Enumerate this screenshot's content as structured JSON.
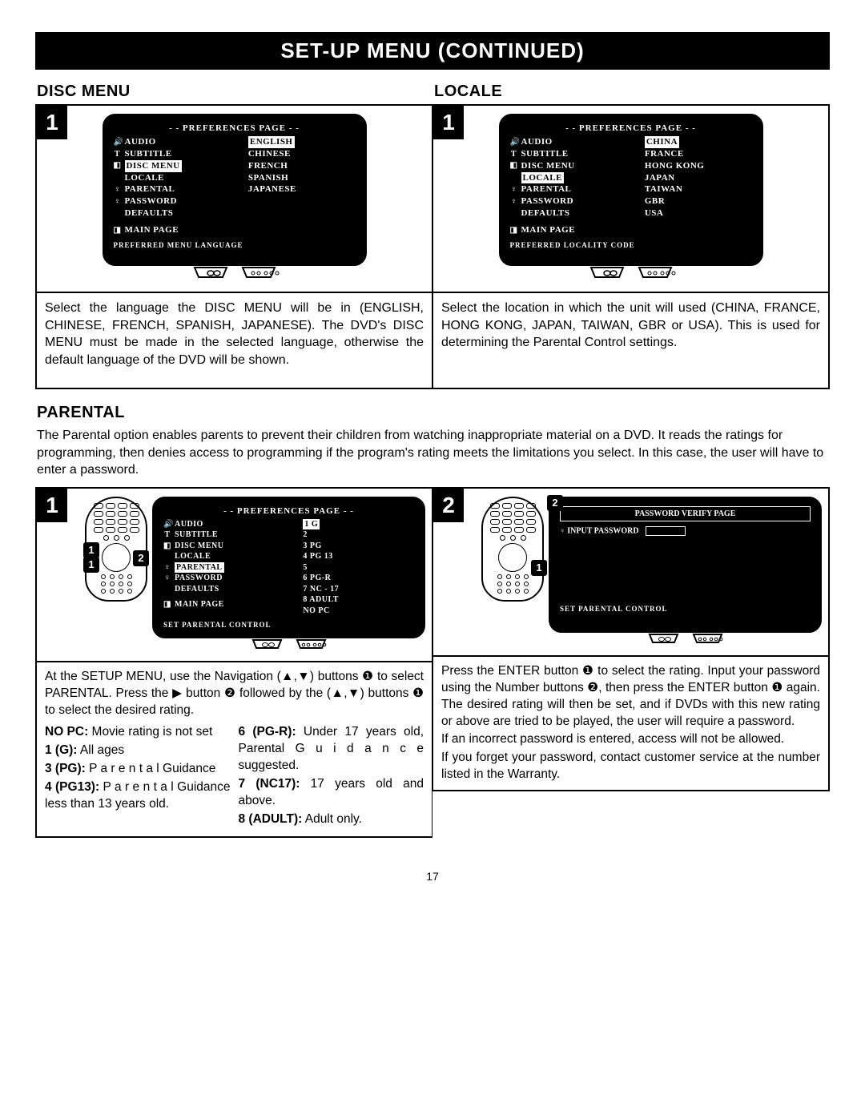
{
  "banner": "SET-UP MENU (CONTINUED)",
  "pageNumber": "17",
  "discMenu": {
    "title": "DISC MENU",
    "step": "1",
    "tvTitle": "- - PREFERENCES PAGE - -",
    "leftItems": [
      {
        "icon": "🔊",
        "label": "AUDIO"
      },
      {
        "icon": "T",
        "label": "SUBTITLE"
      },
      {
        "icon": "◧",
        "label": "DISC MENU",
        "hl": true
      },
      {
        "icon": "",
        "label": "LOCALE"
      },
      {
        "icon": "♀",
        "label": "PARENTAL"
      },
      {
        "icon": "♀",
        "label": "PASSWORD"
      },
      {
        "icon": "",
        "label": "DEFAULTS"
      },
      {
        "icon": "◨",
        "label": "MAIN PAGE",
        "gap": true
      }
    ],
    "rightItems": [
      "ENGLISH",
      "CHINESE",
      "FRENCH",
      "SPANISH",
      "JAPANESE"
    ],
    "rightHl": "ENGLISH",
    "footer": "PREFERRED MENU LANGUAGE",
    "desc": "Select the language the DISC MENU will be in (ENGLISH, CHINESE, FRENCH, SPANISH, JAPANESE). The DVD's DISC MENU must be made in the selected language, otherwise the default language of the DVD will be shown."
  },
  "locale": {
    "title": "LOCALE",
    "step": "1",
    "tvTitle": "- - PREFERENCES PAGE - -",
    "leftItems": [
      {
        "icon": "🔊",
        "label": "AUDIO"
      },
      {
        "icon": "T",
        "label": "SUBTITLE"
      },
      {
        "icon": "◧",
        "label": "DISC MENU"
      },
      {
        "icon": "",
        "label": "LOCALE",
        "hl": true
      },
      {
        "icon": "♀",
        "label": "PARENTAL"
      },
      {
        "icon": "♀",
        "label": "PASSWORD"
      },
      {
        "icon": "",
        "label": "DEFAULTS"
      },
      {
        "icon": "◨",
        "label": "MAIN PAGE",
        "gap": true
      }
    ],
    "rightItems": [
      "CHINA",
      "FRANCE",
      "HONG KONG",
      "JAPAN",
      "TAIWAN",
      "GBR",
      "USA"
    ],
    "rightHl": "CHINA",
    "footer": "PREFERRED LOCALITY CODE",
    "desc": "Select the location in which the unit will used (CHINA, FRANCE, HONG KONG, JAPAN, TAIWAN, GBR or USA). This is used for determining the Parental Control settings."
  },
  "parental": {
    "title": "PARENTAL",
    "intro": "The Parental option enables parents to prevent their children from watching inappropriate material on a DVD. It reads the ratings for programming, then denies access to programming if the program's rating meets the limitations you select. In this case, the user will have to enter a password.",
    "step1": {
      "num": "1",
      "tvTitle": "- - PREFERENCES PAGE - -",
      "leftItems": [
        {
          "icon": "🔊",
          "label": "AUDIO"
        },
        {
          "icon": "T",
          "label": "SUBTITLE"
        },
        {
          "icon": "◧",
          "label": "DISC MENU"
        },
        {
          "icon": "",
          "label": "LOCALE"
        },
        {
          "icon": "♀",
          "label": "PARENTAL",
          "hl": true
        },
        {
          "icon": "♀",
          "label": "PASSWORD"
        },
        {
          "icon": "",
          "label": "DEFAULTS"
        },
        {
          "icon": "◨",
          "label": "MAIN PAGE",
          "gap": true
        }
      ],
      "rightItems": [
        "1  G",
        "2",
        "3  PG",
        "4  PG  13",
        "5",
        "6  PG-R",
        "7  NC - 17",
        "8  ADULT",
        "NO PC"
      ],
      "rightHl": "1  G",
      "footer": "SET PARENTAL CONTROL",
      "callouts": {
        "c1": "1",
        "c2": "2"
      },
      "desc": "At the SETUP MENU, use the Navigation (▲,▼) buttons ❶ to select PARENTAL. Press the ▶ button ❷ followed by the (▲,▼) buttons ❶ to select the desired rating.",
      "ratings": [
        {
          "k": "NO PC:",
          "v": "Movie rating is not set"
        },
        {
          "k": "1 (G):",
          "v": "All ages"
        },
        {
          "k": "3 (PG):",
          "v": "P a r e n t a l Guidance"
        },
        {
          "k": "4 (PG13):",
          "v": "P a r e n t a l Guidance less than 13 years old."
        },
        {
          "k": "6 (PG-R):",
          "v": "Under 17 years old, Parental G u i d a n c e suggested."
        },
        {
          "k": "7 (NC17):",
          "v": "17 years old and above."
        },
        {
          "k": "8 (ADULT):",
          "v": "Adult only."
        }
      ]
    },
    "step2": {
      "num": "2",
      "tvTitle": "PASSWORD VERIFY PAGE",
      "inputLabel": "INPUT PASSWORD",
      "footer": "SET PARENTAL CONTROL",
      "callouts": {
        "c1": "1",
        "c2": "2"
      },
      "desc": "Press the ENTER button ❶ to select the rating. Input your password using the Number buttons ❷, then press the ENTER button ❶ again. The desired rating will then be set, and if DVDs with this new rating or above are tried to be played, the user will require a password.",
      "desc2": "If an incorrect password is entered, access will not be allowed.",
      "desc3": "If you forget your password, contact customer service at the number listed in the Warranty."
    }
  }
}
